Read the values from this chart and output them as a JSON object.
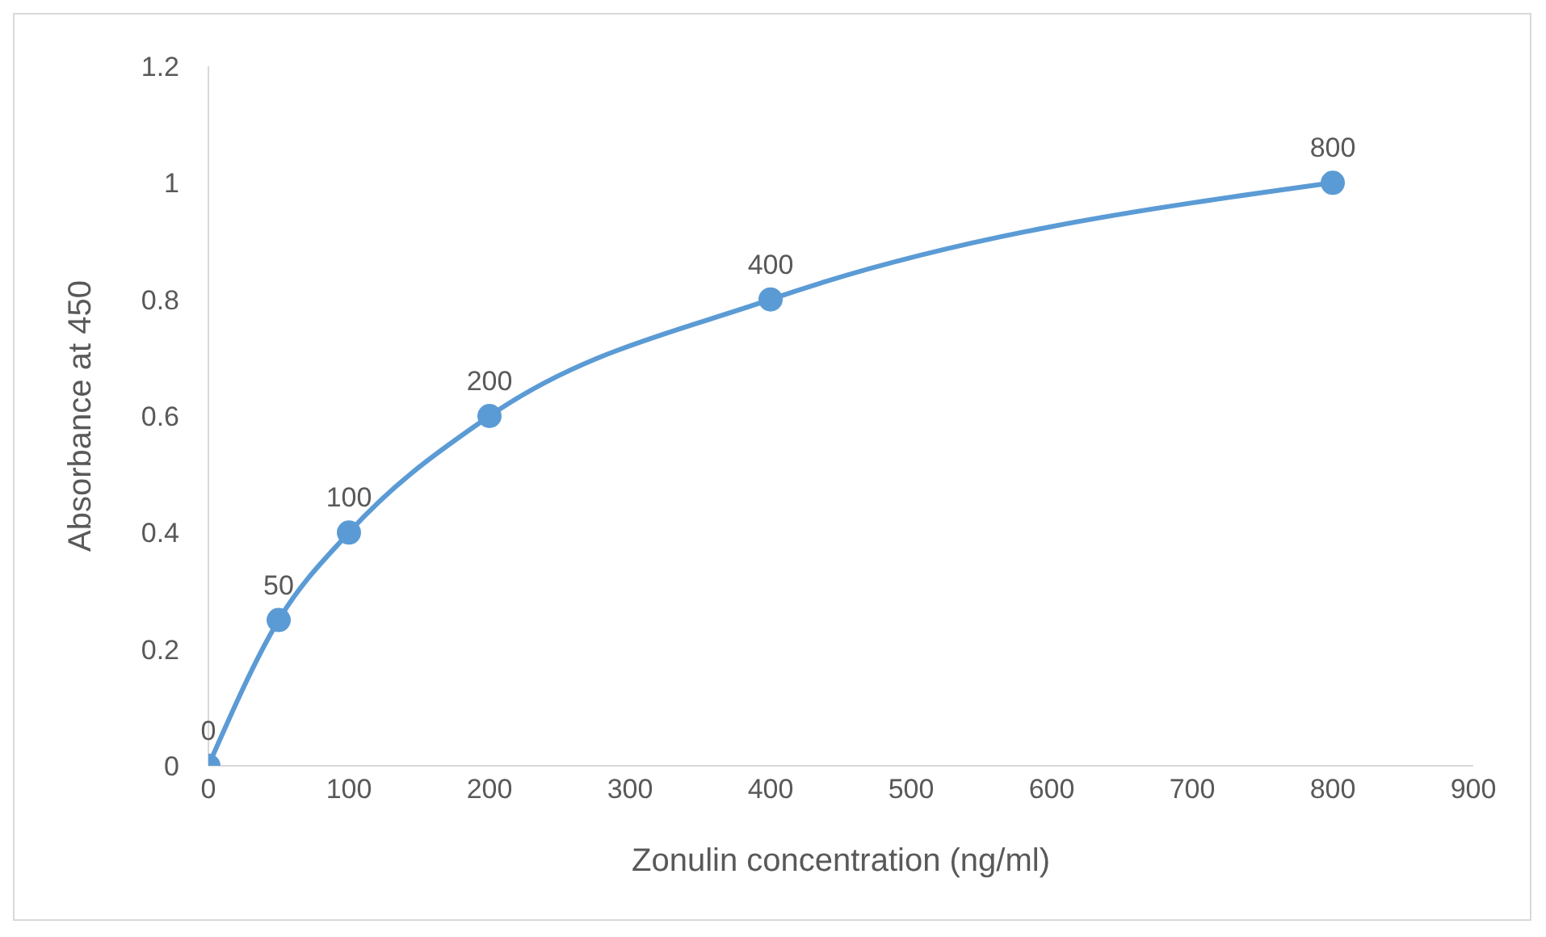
{
  "chart_data": {
    "type": "line",
    "xlabel": "Zonulin concentration (ng/ml)",
    "ylabel": "Absorbance at 450",
    "x": [
      0,
      50,
      100,
      200,
      400,
      800
    ],
    "series": [
      {
        "color": "#5b9bd5",
        "values": [
          0,
          0.25,
          0.4,
          0.6,
          0.8,
          1
        ]
      }
    ],
    "annotations": [
      {
        "text": "0",
        "x": 0,
        "y": 0
      },
      {
        "text": "50",
        "x": 50,
        "y": 0.25
      },
      {
        "text": "100",
        "x": 100,
        "y": 0.4
      },
      {
        "text": "200",
        "x": 200,
        "y": 0.6
      },
      {
        "text": "400",
        "x": 400,
        "y": 0.8
      },
      {
        "text": "800",
        "x": 800,
        "y": 1
      }
    ],
    "xlim": [
      0,
      900
    ],
    "xticks": [
      0,
      100,
      200,
      300,
      400,
      500,
      600,
      700,
      800,
      900
    ],
    "ylim": [
      0,
      1.2
    ],
    "yticks": [
      0,
      0.2,
      0.4,
      0.6,
      0.8,
      1,
      1.2
    ],
    "grid": false,
    "legend": false,
    "marker": "circle",
    "line_style": "solid"
  }
}
